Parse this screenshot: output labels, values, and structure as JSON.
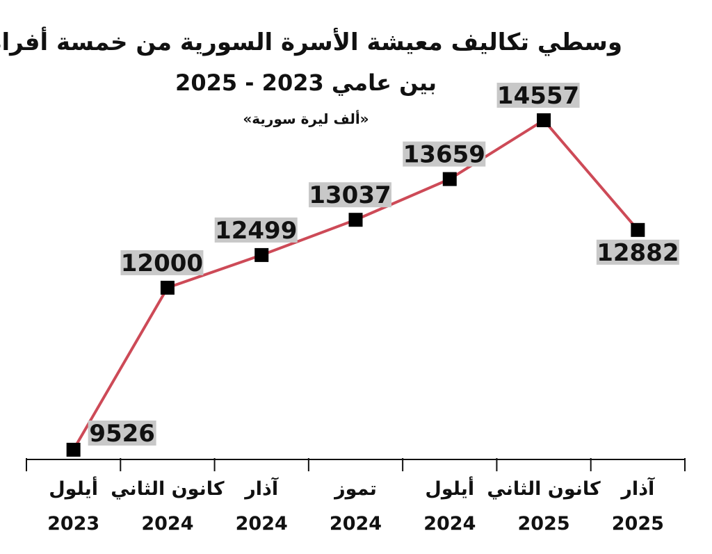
{
  "chart_data": {
    "type": "line",
    "title": "وسطي تكاليف معيشة الأسرة السورية من خمسة أفراد",
    "subtitle": "بين عامي 2023 - 2025",
    "unit_note": "«ألف ليرة سورية»",
    "categories": [
      {
        "month": "أيلول",
        "year": "2023"
      },
      {
        "month": "كانون الثاني",
        "year": "2024"
      },
      {
        "month": "آذار",
        "year": "2024"
      },
      {
        "month": "تموز",
        "year": "2024"
      },
      {
        "month": "أيلول",
        "year": "2024"
      },
      {
        "month": "كانون الثاني",
        "year": "2025"
      },
      {
        "month": "آذار",
        "year": "2025"
      }
    ],
    "values": [
      9526,
      12000,
      12499,
      13037,
      13659,
      14557,
      12882
    ],
    "labels": [
      "9526",
      "12000",
      "12499",
      "13037",
      "13659",
      "14557",
      "12882"
    ],
    "line_color": "#cd4a57",
    "marker_color": "#000000",
    "label_bg_color": "#c8c8c8",
    "grid": false,
    "legend": "none"
  }
}
